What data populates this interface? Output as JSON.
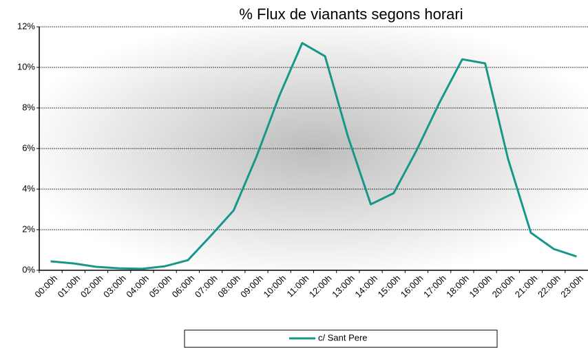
{
  "chart_data": {
    "type": "line",
    "title": "% Flux de vianants segons horari",
    "categories": [
      "00:00h",
      "01:00h",
      "02:00h",
      "03:00h",
      "04:00h",
      "05:00h",
      "06:00h",
      "07:00h",
      "08:00h",
      "09:00h",
      "10:00h",
      "11:00h",
      "12:00h",
      "13:00h",
      "14:00h",
      "15:00h",
      "16:00h",
      "17:00h",
      "18:00h",
      "19:00h",
      "20:00h",
      "21:00h",
      "22:00h",
      "23:00h"
    ],
    "series": [
      {
        "name": "c/ Sant Pere",
        "color": "#17978a",
        "values": [
          0.44,
          0.34,
          0.17,
          0.1,
          0.07,
          0.2,
          0.5,
          1.7,
          2.95,
          5.6,
          8.6,
          11.2,
          10.55,
          6.6,
          3.25,
          3.8,
          5.9,
          8.25,
          10.4,
          10.2,
          5.5,
          1.85,
          1.05,
          0.68
        ]
      }
    ],
    "ylim": [
      0,
      12
    ],
    "yticks": [
      {
        "value": 0,
        "label": "0%"
      },
      {
        "value": 2,
        "label": "2%"
      },
      {
        "value": 4,
        "label": "4%"
      },
      {
        "value": 6,
        "label": "6%"
      },
      {
        "value": 8,
        "label": "8%"
      },
      {
        "value": 10,
        "label": "10%"
      },
      {
        "value": 12,
        "label": "12%"
      }
    ],
    "grid": true,
    "legend": "bottom"
  }
}
